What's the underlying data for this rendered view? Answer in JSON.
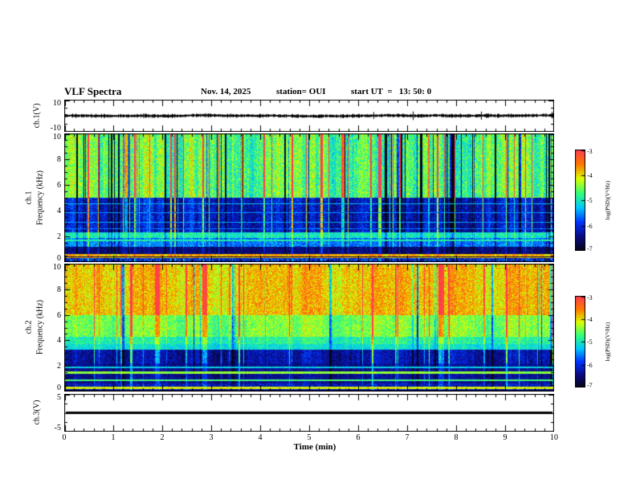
{
  "header": {
    "title": "VLF Spectra",
    "date": "Nov. 14, 2025",
    "station": "station= OUI",
    "start_ut": "start UT  =   13: 50: 0"
  },
  "chart_data": {
    "type": "heatmap",
    "title": "VLF Spectra",
    "x_axis": {
      "label": "Time (min)",
      "min": 0,
      "max": 10,
      "tick_labels": [
        "0",
        "1",
        "2",
        "3",
        "4",
        "5",
        "6",
        "7",
        "8",
        "9",
        "10"
      ],
      "minor_ticks_per_major": 5
    },
    "value_range": [
      -7,
      -3
    ],
    "colormap": [
      "#050514",
      "#0a0a82",
      "#0032ff",
      "#00c8ff",
      "#32ff78",
      "#dcff00",
      "#ff7800",
      "#ff3c50"
    ],
    "panels": [
      {
        "id": "ch1-voltage",
        "type": "waveform",
        "ylabel": "ch.1(V)",
        "y_min": -10,
        "y_max": 10,
        "y_tick_labels": [
          {
            "value": 10,
            "label": "10"
          },
          {
            "value": -10,
            "label": "-10"
          }
        ],
        "description": "dense broadband noise trace around 0 V with occasional bursts",
        "noise_v": 1.0,
        "burst_v": 3.0,
        "trace_color": "#000000"
      },
      {
        "id": "ch1-spectrogram",
        "type": "spectrogram",
        "ylabel_channel": "ch.1",
        "ylabel_axis": "Frequency (kHz)",
        "y_min": 0,
        "y_max": 10,
        "y_tick_labels": [
          {
            "value": 10,
            "label": "10"
          },
          {
            "value": 8,
            "label": "8"
          },
          {
            "value": 6,
            "label": "6"
          },
          {
            "value": 4,
            "label": "4"
          },
          {
            "value": 2,
            "label": "2"
          },
          {
            "value": 0,
            "label": "0"
          }
        ],
        "streak_probability": 0.22,
        "streak_negative_fraction": 0.62,
        "bands": [
          {
            "f": [
              5.0,
              10.0
            ],
            "level": -4.7,
            "streak": 1.5,
            "noise": 0.5
          },
          {
            "f": [
              2.3,
              5.0
            ],
            "level": -6.2,
            "streak": 1.1,
            "noise": 0.4
          },
          {
            "f": [
              1.9,
              2.3
            ],
            "level": -5.0,
            "streak": 0.3,
            "noise": 0.35
          },
          {
            "f": [
              1.2,
              1.9
            ],
            "level": -5.6,
            "streak": 0.4,
            "noise": 0.4
          },
          {
            "f": [
              0.6,
              1.2
            ],
            "level": -6.5,
            "streak": 0.3,
            "noise": 0.3
          },
          {
            "f": [
              0.3,
              0.6
            ],
            "level": -3.8,
            "streak": 0.25,
            "noise": 0.35
          },
          {
            "f": [
              0.0,
              0.3
            ],
            "level": -6.0,
            "streak": 0.3,
            "noise": 0.6
          }
        ],
        "hlines": [
          {
            "f": 4.55,
            "level": -5.3,
            "width": 1
          },
          {
            "f": 3.85,
            "level": -5.5,
            "width": 1
          },
          {
            "f": 3.1,
            "level": -5.4,
            "width": 1
          },
          {
            "f": 2.65,
            "level": -5.6,
            "width": 1
          },
          {
            "f": 1.75,
            "level": -4.9,
            "width": 2
          },
          {
            "f": 0.45,
            "level": -6.8,
            "width": 1
          }
        ]
      },
      {
        "id": "ch2-spectrogram",
        "type": "spectrogram",
        "ylabel_channel": "ch.2",
        "ylabel_axis": "Frequency (kHz)",
        "y_min": 0,
        "y_max": 10,
        "y_tick_labels": [
          {
            "value": 10,
            "label": "10"
          },
          {
            "value": 8,
            "label": "8"
          },
          {
            "value": 6,
            "label": "6"
          },
          {
            "value": 4,
            "label": "4"
          },
          {
            "value": 2,
            "label": "2"
          },
          {
            "value": 0,
            "label": "0"
          }
        ],
        "streak_probability": 0.15,
        "streak_negative_fraction": 0.45,
        "bands": [
          {
            "f": [
              6.0,
              10.0
            ],
            "level": -3.9,
            "streak": 0.85,
            "noise": 0.45
          },
          {
            "f": [
              4.3,
              6.0
            ],
            "level": -4.5,
            "streak": 0.75,
            "noise": 0.4
          },
          {
            "f": [
              3.7,
              4.3
            ],
            "level": -4.9,
            "streak": 0.5,
            "noise": 0.35
          },
          {
            "f": [
              3.25,
              3.7
            ],
            "level": -5.1,
            "streak": 0.35,
            "noise": 0.3
          },
          {
            "f": [
              2.2,
              3.25
            ],
            "level": -6.3,
            "streak": 0.8,
            "noise": 0.35
          },
          {
            "f": [
              0.6,
              2.2
            ],
            "level": -6.4,
            "streak": 0.45,
            "noise": 0.3
          },
          {
            "f": [
              0.0,
              0.6
            ],
            "level": -6.2,
            "streak": 0.35,
            "noise": 0.45
          }
        ],
        "hlines": [
          {
            "f": 1.95,
            "level": -5.2,
            "width": 2
          },
          {
            "f": 1.6,
            "level": -4.4,
            "width": 3
          },
          {
            "f": 0.95,
            "level": -4.7,
            "width": 2
          },
          {
            "f": 0.4,
            "level": -4.1,
            "width": 3
          },
          {
            "f": 0.15,
            "level": -6.6,
            "width": 2
          }
        ]
      },
      {
        "id": "ch3-voltage",
        "type": "flatline",
        "ylabel": "ch.3(V)",
        "y_min": -5,
        "y_max": 5,
        "y_tick_labels": [
          {
            "value": 5,
            "label": "5"
          },
          {
            "value": -5,
            "label": "-5"
          }
        ],
        "line_value": 0,
        "trace_color": "#000000"
      }
    ],
    "colorbars": [
      {
        "label": "log(PSD)(V²/Hz)",
        "min": -7,
        "max": -3,
        "tick_labels": [
          "-3",
          "-4",
          "-5",
          "-6",
          "-7"
        ]
      },
      {
        "label": "log(PSD)(V²/Hz)",
        "min": -7,
        "max": -3,
        "tick_labels": [
          "-3",
          "-4",
          "-5",
          "-6",
          "-7"
        ]
      }
    ]
  }
}
